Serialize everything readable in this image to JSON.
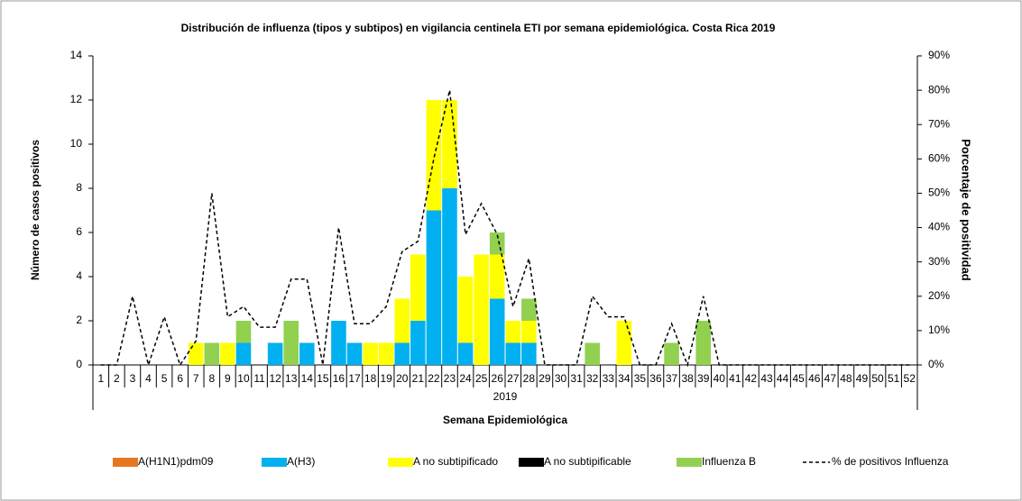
{
  "chart_data": {
    "type": "bar",
    "stacked": true,
    "title": "Distribución de influenza (tipos y subtipos) en vigilancia centinela ETI por semana epidemiológica. Costa Rica 2019",
    "y_label": "Número de casos positivos",
    "y2_label": "Porcentaje de positividad",
    "x_label": "Semana Epidemiológica",
    "x_group": "2019",
    "categories": [
      "1",
      "2",
      "3",
      "4",
      "5",
      "6",
      "7",
      "8",
      "9",
      "10",
      "11",
      "12",
      "13",
      "14",
      "15",
      "16",
      "17",
      "18",
      "19",
      "20",
      "21",
      "22",
      "23",
      "24",
      "25",
      "26",
      "27",
      "28",
      "29",
      "30",
      "31",
      "32",
      "33",
      "34",
      "35",
      "36",
      "37",
      "38",
      "39",
      "40",
      "41",
      "42",
      "43",
      "44",
      "45",
      "46",
      "47",
      "48",
      "49",
      "50",
      "51",
      "52"
    ],
    "series": [
      {
        "name": "A(H1N1)pdm09",
        "color": "#e87722",
        "values": [
          0,
          0,
          0,
          0,
          0,
          0,
          0,
          0,
          0,
          0,
          0,
          0,
          0,
          0,
          0,
          0,
          0,
          0,
          0,
          0,
          0,
          0,
          0,
          0,
          0,
          0,
          0,
          0,
          0,
          0,
          0,
          0,
          0,
          0,
          0,
          0,
          0,
          0,
          0,
          0,
          0,
          0,
          0,
          0,
          0,
          0,
          0,
          0,
          0,
          0,
          0,
          0
        ]
      },
      {
        "name": "A(H3)",
        "color": "#00b0f0",
        "values": [
          0,
          0,
          0,
          0,
          0,
          0,
          0,
          0,
          0,
          1,
          0,
          1,
          0,
          1,
          0,
          2,
          1,
          0,
          0,
          1,
          2,
          7,
          8,
          1,
          0,
          3,
          1,
          1,
          0,
          0,
          0,
          0,
          0,
          0,
          0,
          0,
          0,
          0,
          0,
          0,
          0,
          0,
          0,
          0,
          0,
          0,
          0,
          0,
          0,
          0,
          0,
          0
        ]
      },
      {
        "name": "A no subtipificado",
        "color": "#ffff00",
        "values": [
          0,
          0,
          0,
          0,
          0,
          0,
          1,
          0,
          1,
          0,
          0,
          0,
          0,
          0,
          0,
          0,
          0,
          1,
          1,
          2,
          3,
          5,
          4,
          3,
          5,
          2,
          1,
          1,
          0,
          0,
          0,
          0,
          0,
          2,
          0,
          0,
          0,
          0,
          0,
          0,
          0,
          0,
          0,
          0,
          0,
          0,
          0,
          0,
          0,
          0,
          0,
          0
        ]
      },
      {
        "name": "A no subtipificable",
        "color": "#000000",
        "values": [
          0,
          0,
          0,
          0,
          0,
          0,
          0,
          0,
          0,
          0,
          0,
          0,
          0,
          0,
          0,
          0,
          0,
          0,
          0,
          0,
          0,
          0,
          0,
          0,
          0,
          0,
          0,
          0,
          0,
          0,
          0,
          0,
          0,
          0,
          0,
          0,
          0,
          0,
          0,
          0,
          0,
          0,
          0,
          0,
          0,
          0,
          0,
          0,
          0,
          0,
          0,
          0
        ]
      },
      {
        "name": "Influenza B",
        "color": "#92d050",
        "values": [
          0,
          0,
          0,
          0,
          0,
          0,
          0,
          1,
          0,
          1,
          0,
          0,
          2,
          0,
          0,
          0,
          0,
          0,
          0,
          0,
          0,
          0,
          0,
          0,
          0,
          1,
          0,
          1,
          0,
          0,
          0,
          1,
          0,
          0,
          0,
          0,
          1,
          0,
          2,
          0,
          0,
          0,
          0,
          0,
          0,
          0,
          0,
          0,
          0,
          0,
          0,
          0
        ]
      },
      {
        "name": "% de positivos Influenza",
        "color": "#000000",
        "type": "line",
        "dashed": true,
        "axis": "y2",
        "values": [
          0,
          0,
          20,
          0,
          14,
          0,
          7,
          50,
          14,
          17,
          11,
          11,
          25,
          25,
          0,
          40,
          12,
          12,
          17,
          33,
          36,
          60,
          80,
          38,
          47,
          38,
          17,
          31,
          0,
          0,
          0,
          20,
          14,
          14,
          0,
          0,
          12,
          0,
          20,
          0,
          0,
          0,
          0,
          0,
          0,
          0,
          0,
          0,
          0,
          0,
          0,
          0
        ]
      }
    ],
    "ylim": [
      0,
      14
    ],
    "yticks": [
      0,
      2,
      4,
      6,
      8,
      10,
      12,
      14
    ],
    "y2lim": [
      0,
      90
    ],
    "y2ticks": [
      {
        "value": 0,
        "label": "0%"
      },
      {
        "value": 10,
        "label": "10%"
      },
      {
        "value": 20,
        "label": "20%"
      },
      {
        "value": 30,
        "label": "30%"
      },
      {
        "value": 40,
        "label": "40%"
      },
      {
        "value": 50,
        "label": "50%"
      },
      {
        "value": 60,
        "label": "60%"
      },
      {
        "value": 70,
        "label": "70%"
      },
      {
        "value": 80,
        "label": "80%"
      },
      {
        "value": 90,
        "label": "90%"
      }
    ],
    "legend": "bottom"
  }
}
